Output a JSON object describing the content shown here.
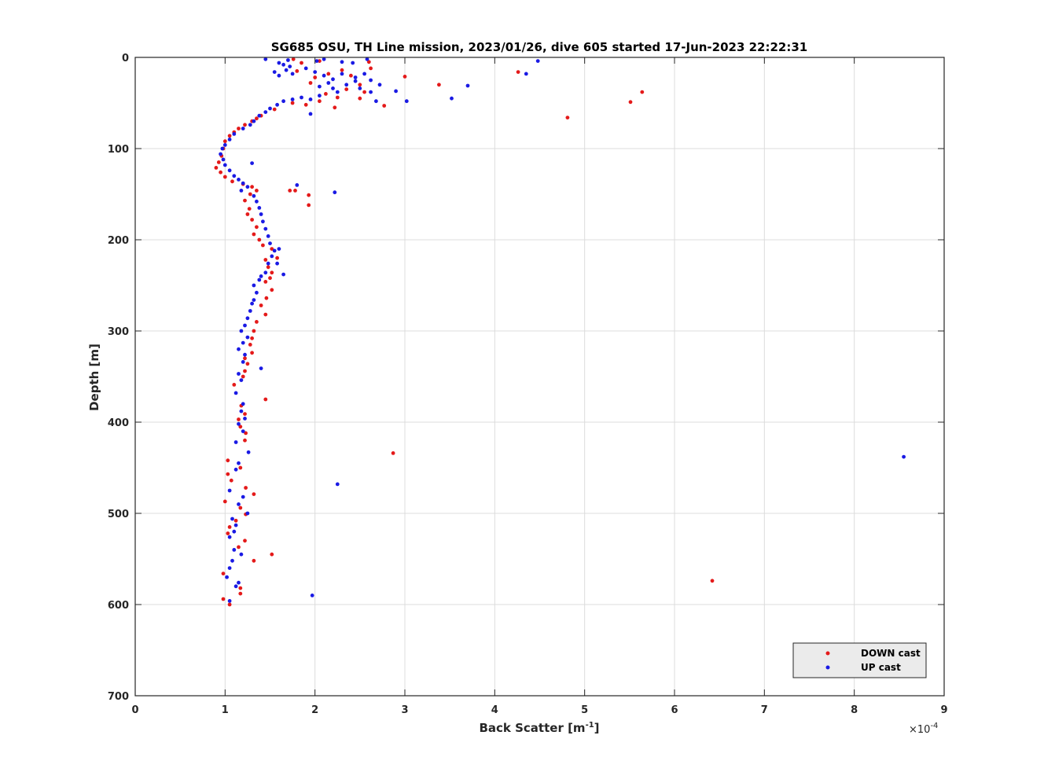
{
  "chart_data": {
    "type": "scatter",
    "title": "SG685 OSU, TH Line mission, 2023/01/26, dive 605 started 17-Jun-2023 22:22:31",
    "xlabel": "Back Scatter [m",
    "xlabel_exponent": "-1",
    "xlabel_suffix": "]",
    "ylabel": "Depth [m]",
    "x_multiplier_prefix": "×10",
    "x_multiplier_exponent": "-4",
    "xlim": [
      0,
      9
    ],
    "ylim": [
      0,
      700
    ],
    "y_reversed": true,
    "grid": true,
    "legend_position": "bottom-right",
    "x_ticks": [
      0,
      1,
      2,
      3,
      4,
      5,
      6,
      7,
      8,
      9
    ],
    "x_tick_labels": [
      "0",
      "1",
      "2",
      "3",
      "4",
      "5",
      "6",
      "7",
      "8",
      "9"
    ],
    "y_ticks": [
      0,
      100,
      200,
      300,
      400,
      500,
      600,
      700
    ],
    "y_tick_labels": [
      "0",
      "100",
      "200",
      "300",
      "400",
      "500",
      "600",
      "700"
    ],
    "series": [
      {
        "name": "DOWN cast",
        "color": "#e41a1a",
        "points": [
          [
            1.76,
            2
          ],
          [
            1.85,
            6
          ],
          [
            2.05,
            4
          ],
          [
            2.6,
            5
          ],
          [
            2.62,
            12
          ],
          [
            2.3,
            14
          ],
          [
            2.15,
            18
          ],
          [
            2.4,
            20
          ],
          [
            2.0,
            22
          ],
          [
            1.8,
            15
          ],
          [
            1.95,
            28
          ],
          [
            2.5,
            30
          ],
          [
            2.35,
            35
          ],
          [
            2.55,
            38
          ],
          [
            2.12,
            40
          ],
          [
            2.5,
            45
          ],
          [
            2.25,
            44
          ],
          [
            2.05,
            48
          ],
          [
            1.9,
            52
          ],
          [
            2.22,
            55
          ],
          [
            2.77,
            53
          ],
          [
            4.26,
            16
          ],
          [
            3.0,
            21
          ],
          [
            3.38,
            30
          ],
          [
            5.64,
            38
          ],
          [
            5.51,
            49
          ],
          [
            4.81,
            66
          ],
          [
            1.75,
            50
          ],
          [
            1.55,
            57
          ],
          [
            1.4,
            64
          ],
          [
            1.35,
            67
          ],
          [
            1.3,
            70
          ],
          [
            1.22,
            74
          ],
          [
            1.15,
            78
          ],
          [
            1.1,
            82
          ],
          [
            1.05,
            86
          ],
          [
            1.0,
            92
          ],
          [
            0.98,
            100
          ],
          [
            0.96,
            108
          ],
          [
            0.93,
            115
          ],
          [
            0.9,
            121
          ],
          [
            0.95,
            126
          ],
          [
            1.0,
            131
          ],
          [
            1.08,
            136
          ],
          [
            1.2,
            139
          ],
          [
            1.3,
            142
          ],
          [
            1.35,
            146
          ],
          [
            1.28,
            150
          ],
          [
            1.72,
            146
          ],
          [
            1.78,
            146
          ],
          [
            1.93,
            151
          ],
          [
            1.93,
            162
          ],
          [
            1.22,
            157
          ],
          [
            1.27,
            166
          ],
          [
            1.25,
            172
          ],
          [
            1.3,
            178
          ],
          [
            1.35,
            186
          ],
          [
            1.32,
            194
          ],
          [
            1.38,
            200
          ],
          [
            1.42,
            206
          ],
          [
            1.52,
            210
          ],
          [
            1.58,
            220
          ],
          [
            1.45,
            222
          ],
          [
            1.48,
            230
          ],
          [
            1.52,
            236
          ],
          [
            1.5,
            242
          ],
          [
            1.45,
            246
          ],
          [
            1.52,
            255
          ],
          [
            1.46,
            264
          ],
          [
            1.4,
            272
          ],
          [
            1.45,
            282
          ],
          [
            1.35,
            290
          ],
          [
            1.32,
            300
          ],
          [
            1.3,
            308
          ],
          [
            1.28,
            315
          ],
          [
            1.3,
            324
          ],
          [
            1.22,
            330
          ],
          [
            1.25,
            336
          ],
          [
            1.22,
            344
          ],
          [
            1.2,
            350
          ],
          [
            1.1,
            359
          ],
          [
            1.45,
            375
          ],
          [
            1.18,
            382
          ],
          [
            1.22,
            391
          ],
          [
            1.15,
            397
          ],
          [
            1.17,
            405
          ],
          [
            1.23,
            412
          ],
          [
            1.22,
            420
          ],
          [
            2.87,
            434
          ],
          [
            1.03,
            442
          ],
          [
            1.17,
            450
          ],
          [
            1.03,
            457
          ],
          [
            1.07,
            464
          ],
          [
            1.23,
            472
          ],
          [
            1.32,
            479
          ],
          [
            1.0,
            487
          ],
          [
            1.17,
            494
          ],
          [
            1.23,
            501
          ],
          [
            1.12,
            508
          ],
          [
            1.05,
            515
          ],
          [
            1.03,
            522
          ],
          [
            1.22,
            530
          ],
          [
            1.15,
            537
          ],
          [
            1.52,
            545
          ],
          [
            1.32,
            552
          ],
          [
            0.98,
            566
          ],
          [
            1.17,
            582
          ],
          [
            1.17,
            588
          ],
          [
            0.98,
            594
          ],
          [
            1.05,
            600
          ],
          [
            6.42,
            574
          ]
        ]
      },
      {
        "name": "UP cast",
        "color": "#1a1ae4",
        "points": [
          [
            1.45,
            2
          ],
          [
            1.7,
            3
          ],
          [
            2.1,
            2
          ],
          [
            2.02,
            4
          ],
          [
            2.3,
            5
          ],
          [
            2.42,
            6
          ],
          [
            2.58,
            2
          ],
          [
            1.6,
            6
          ],
          [
            1.65,
            8
          ],
          [
            1.72,
            10
          ],
          [
            1.68,
            14
          ],
          [
            1.55,
            16
          ],
          [
            1.6,
            20
          ],
          [
            1.75,
            18
          ],
          [
            1.9,
            12
          ],
          [
            2.0,
            16
          ],
          [
            2.1,
            20
          ],
          [
            2.2,
            24
          ],
          [
            2.3,
            18
          ],
          [
            2.45,
            22
          ],
          [
            2.55,
            18
          ],
          [
            2.62,
            25
          ],
          [
            2.72,
            30
          ],
          [
            2.45,
            26
          ],
          [
            2.35,
            30
          ],
          [
            2.15,
            28
          ],
          [
            2.05,
            32
          ],
          [
            2.2,
            34
          ],
          [
            2.5,
            34
          ],
          [
            2.62,
            38
          ],
          [
            2.9,
            37
          ],
          [
            2.68,
            48
          ],
          [
            3.02,
            48
          ],
          [
            3.52,
            45
          ],
          [
            3.7,
            31
          ],
          [
            4.48,
            4
          ],
          [
            4.35,
            18
          ],
          [
            2.25,
            38
          ],
          [
            2.05,
            42
          ],
          [
            1.95,
            46
          ],
          [
            1.85,
            44
          ],
          [
            1.75,
            46
          ],
          [
            1.65,
            48
          ],
          [
            1.58,
            52
          ],
          [
            1.5,
            56
          ],
          [
            1.45,
            60
          ],
          [
            1.38,
            64
          ],
          [
            1.32,
            70
          ],
          [
            1.28,
            74
          ],
          [
            1.2,
            78
          ],
          [
            1.1,
            84
          ],
          [
            1.05,
            90
          ],
          [
            1.0,
            96
          ],
          [
            0.97,
            100
          ],
          [
            0.95,
            106
          ],
          [
            0.98,
            112
          ],
          [
            1.0,
            118
          ],
          [
            1.05,
            124
          ],
          [
            1.1,
            130
          ],
          [
            1.15,
            134
          ],
          [
            1.2,
            138
          ],
          [
            1.25,
            142
          ],
          [
            1.18,
            146
          ],
          [
            1.3,
            116
          ],
          [
            2.22,
            148
          ],
          [
            1.95,
            62
          ],
          [
            1.8,
            140
          ],
          [
            1.32,
            152
          ],
          [
            1.35,
            158
          ],
          [
            1.38,
            165
          ],
          [
            1.4,
            172
          ],
          [
            1.42,
            180
          ],
          [
            1.45,
            188
          ],
          [
            1.48,
            196
          ],
          [
            1.5,
            204
          ],
          [
            1.55,
            212
          ],
          [
            1.6,
            210
          ],
          [
            1.52,
            218
          ],
          [
            1.48,
            226
          ],
          [
            1.58,
            226
          ],
          [
            1.65,
            238
          ],
          [
            1.45,
            236
          ],
          [
            1.4,
            240
          ],
          [
            1.38,
            244
          ],
          [
            1.32,
            250
          ],
          [
            1.35,
            258
          ],
          [
            1.32,
            266
          ],
          [
            1.3,
            270
          ],
          [
            1.28,
            278
          ],
          [
            1.25,
            286
          ],
          [
            1.22,
            294
          ],
          [
            1.18,
            300
          ],
          [
            1.25,
            307
          ],
          [
            1.2,
            313
          ],
          [
            1.15,
            320
          ],
          [
            1.22,
            326
          ],
          [
            1.2,
            334
          ],
          [
            1.4,
            341
          ],
          [
            1.15,
            347
          ],
          [
            1.18,
            354
          ],
          [
            1.12,
            368
          ],
          [
            1.2,
            380
          ],
          [
            1.18,
            388
          ],
          [
            1.22,
            396
          ],
          [
            1.15,
            402
          ],
          [
            1.2,
            410
          ],
          [
            1.12,
            422
          ],
          [
            1.26,
            433
          ],
          [
            1.15,
            445
          ],
          [
            1.12,
            452
          ],
          [
            2.25,
            468
          ],
          [
            1.05,
            475
          ],
          [
            1.2,
            482
          ],
          [
            1.15,
            490
          ],
          [
            1.25,
            500
          ],
          [
            1.08,
            506
          ],
          [
            1.12,
            513
          ],
          [
            1.1,
            520
          ],
          [
            1.05,
            526
          ],
          [
            1.18,
            545
          ],
          [
            1.1,
            540
          ],
          [
            1.08,
            552
          ],
          [
            1.05,
            560
          ],
          [
            1.02,
            570
          ],
          [
            1.15,
            576
          ],
          [
            1.12,
            580
          ],
          [
            1.05,
            596
          ],
          [
            1.97,
            590
          ],
          [
            8.55,
            438
          ]
        ]
      }
    ]
  }
}
